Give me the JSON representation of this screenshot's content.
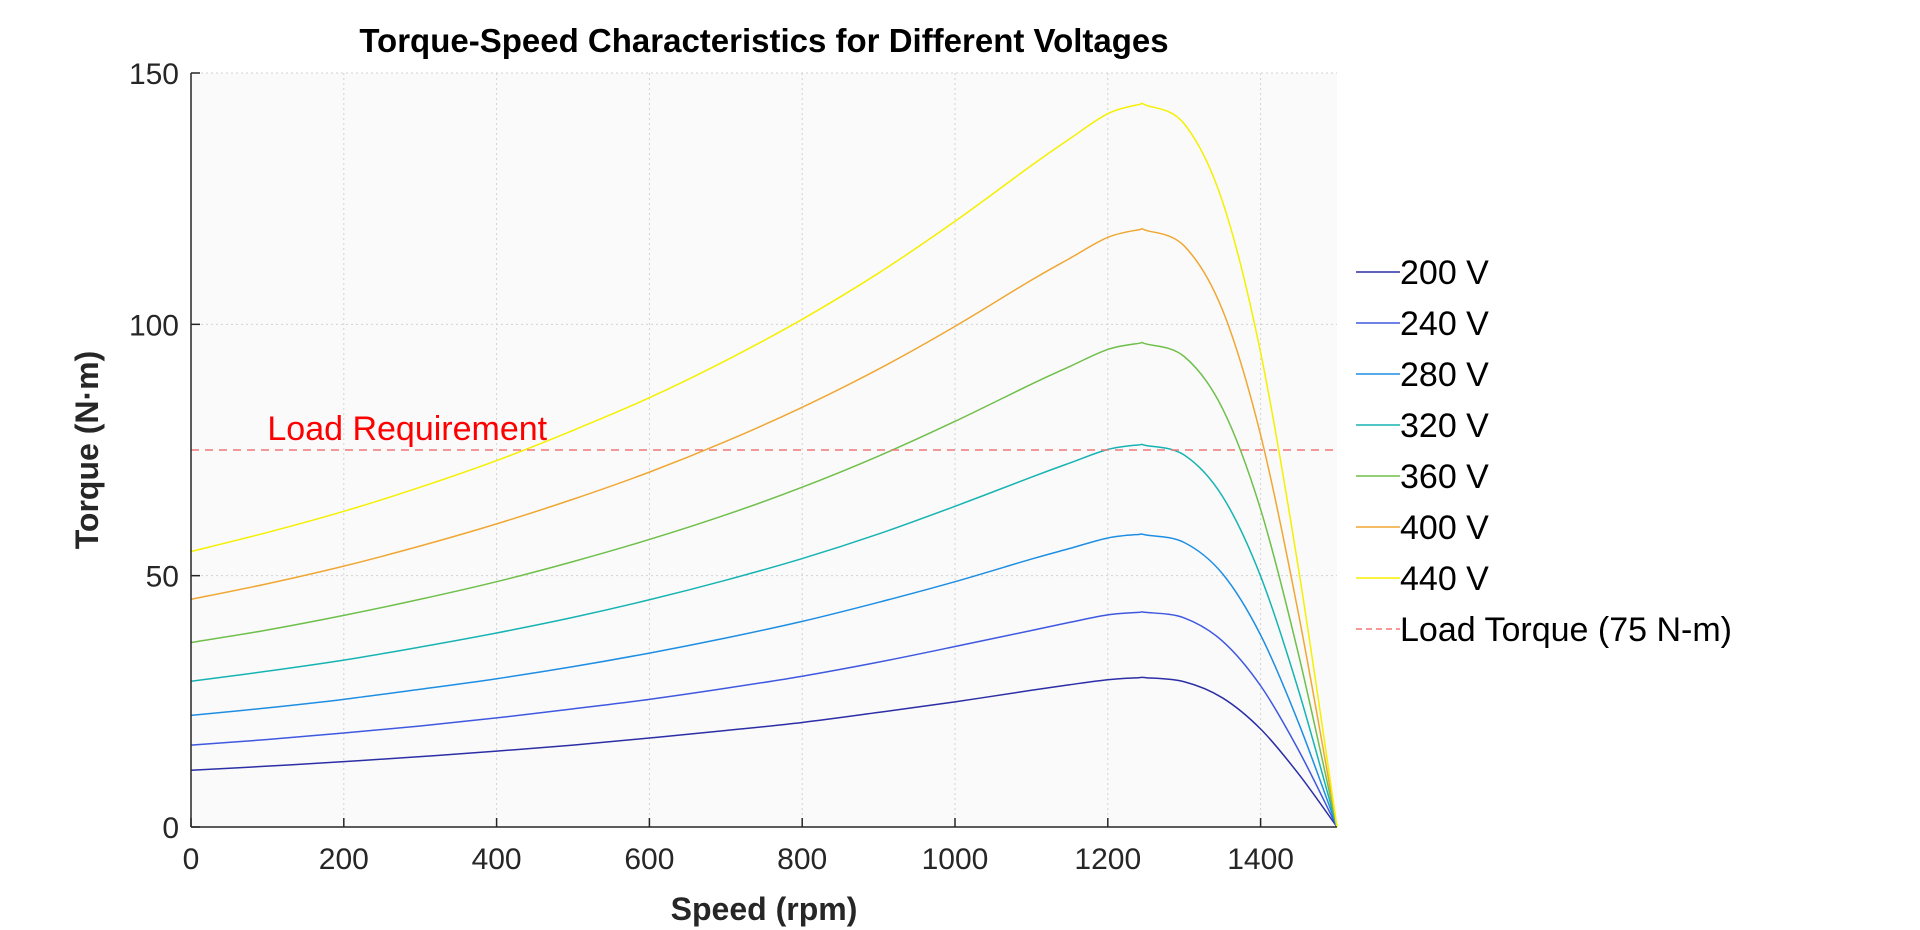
{
  "chart_data": {
    "type": "line",
    "title": "Torque-Speed Characteristics for Different Voltages",
    "xlabel": "Speed (rpm)",
    "ylabel": "Torque (N·m)",
    "xlim": [
      0,
      1500
    ],
    "ylim": [
      0,
      150
    ],
    "xticks": [
      0,
      200,
      400,
      600,
      800,
      1000,
      1200,
      1400
    ],
    "yticks": [
      0,
      50,
      100,
      150
    ],
    "grid": true,
    "legend_position": "right",
    "x": [
      0,
      100,
      200,
      300,
      400,
      500,
      600,
      700,
      800,
      900,
      1000,
      1100,
      1150,
      1200,
      1240,
      1250,
      1300,
      1350,
      1400,
      1450,
      1500
    ],
    "series": [
      {
        "name": "200 V",
        "color": "#2b2ea6",
        "values": [
          11.3,
          12.1,
          13.0,
          14.0,
          15.1,
          16.3,
          17.7,
          19.2,
          20.8,
          22.8,
          24.9,
          27.2,
          28.3,
          29.3,
          29.7,
          29.7,
          28.9,
          25.7,
          19.5,
          10.5,
          0
        ]
      },
      {
        "name": "240 V",
        "color": "#3f58e0",
        "values": [
          16.3,
          17.4,
          18.7,
          20.1,
          21.7,
          23.5,
          25.4,
          27.6,
          30.0,
          32.8,
          35.9,
          39.1,
          40.7,
          42.2,
          42.7,
          42.7,
          41.6,
          37.0,
          28.1,
          15.2,
          0
        ]
      },
      {
        "name": "280 V",
        "color": "#1e8ee3",
        "values": [
          22.2,
          23.7,
          25.4,
          27.4,
          29.5,
          31.9,
          34.6,
          37.6,
          40.9,
          44.7,
          48.8,
          53.3,
          55.4,
          57.5,
          58.2,
          58.1,
          56.6,
          50.4,
          38.2,
          20.6,
          0
        ]
      },
      {
        "name": "320 V",
        "color": "#17b3b3",
        "values": [
          29.0,
          31.0,
          33.2,
          35.8,
          38.6,
          41.7,
          45.2,
          49.1,
          53.4,
          58.3,
          63.8,
          69.6,
          72.4,
          75.1,
          76.0,
          75.9,
          74.0,
          65.8,
          49.9,
          27.0,
          0
        ]
      },
      {
        "name": "360 V",
        "color": "#6fbf4a",
        "values": [
          36.7,
          39.2,
          42.1,
          45.3,
          48.8,
          52.8,
          57.2,
          62.1,
          67.6,
          73.8,
          80.7,
          88.1,
          91.6,
          95.0,
          96.2,
          96.1,
          93.6,
          83.3,
          63.2,
          34.1,
          0
        ]
      },
      {
        "name": "400 V",
        "color": "#f0a732",
        "values": [
          45.3,
          48.4,
          51.9,
          55.9,
          60.3,
          65.2,
          70.6,
          76.7,
          83.5,
          91.1,
          99.6,
          108.8,
          113.1,
          117.3,
          118.8,
          118.7,
          115.6,
          102.9,
          78.0,
          42.1,
          0
        ]
      },
      {
        "name": "440 V",
        "color": "#f5f000",
        "values": [
          54.8,
          58.6,
          62.8,
          67.6,
          72.9,
          78.9,
          85.4,
          92.8,
          101.0,
          110.2,
          120.5,
          131.6,
          136.9,
          141.9,
          143.7,
          143.6,
          139.9,
          124.5,
          94.4,
          51.0,
          0
        ]
      }
    ],
    "reference_line": {
      "name": "Load Torque (75 N-m)",
      "y": 75,
      "color": "#f07878",
      "style": "dashed"
    },
    "annotations": [
      {
        "text": "Load Requirement",
        "x": 100,
        "y": 77,
        "color": "#ff0000"
      }
    ]
  }
}
